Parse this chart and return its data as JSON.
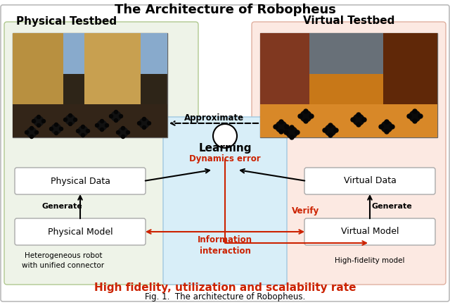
{
  "title": "The Architecture of Robopheus",
  "subtitle": "High fidelity, utilization and scalability rate",
  "caption": "Fig. 1.  The architecture of Robopheus.",
  "left_box_label": "Physical Testbed",
  "right_box_label": "Virtual Testbed",
  "center_box_label": "Learning",
  "center_sublabel": "Dynamics error",
  "left_data_box": "Physical Data",
  "right_data_box": "Virtual Data",
  "left_model_box": "Physical Model",
  "right_model_box": "Virtual Model",
  "left_sub_text": "Heterogeneous robot\nwith unified connector",
  "right_sub_text": "High-fidelity model",
  "arrow_approximate": "Approximate",
  "arrow_generate_left": "Generate",
  "arrow_generate_right": "Generate",
  "arrow_verify": "Verify",
  "arrow_info": "Information\ninteraction",
  "bg_color": "#ffffff",
  "left_box_bg": "#eef3e8",
  "right_box_bg": "#fce9e2",
  "center_box_bg": "#d8eef8",
  "data_box_bg": "#ffffff",
  "red_color": "#cc2200",
  "black_color": "#000000",
  "outer_border": "#cccccc",
  "phys_photo_floor": "#3a3028",
  "phys_photo_wall_l": "#c8a050",
  "phys_photo_wall_c": "#90bbcc",
  "phys_photo_wall_r": "#c8a050",
  "virt_photo_floor": "#d08030",
  "virt_photo_wall": "#606870",
  "virt_photo_door_l": "#804020",
  "virt_photo_door_r": "#603010"
}
